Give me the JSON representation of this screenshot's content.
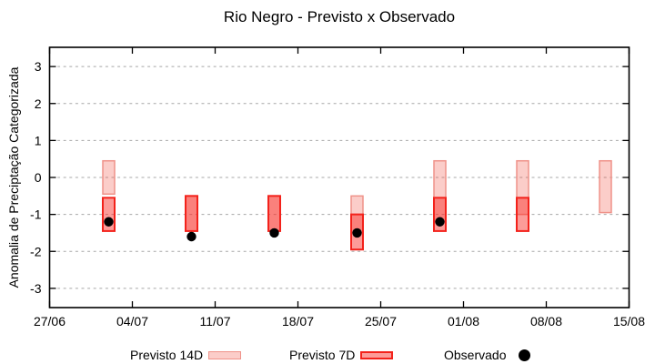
{
  "title": "Rio Negro - Previsto x Observado",
  "legend": {
    "previsto14_label": "Previsto 14D",
    "previsto7_label": "Previsto 7D",
    "observado_label": "Observado"
  },
  "colors": {
    "p14_fill": "rgba(240,70,55,0.27)",
    "p14_stroke": "#ef9289",
    "p7_fill": "rgba(248,40,32,0.46)",
    "p7_stroke": "#f3221b",
    "observado": "#000000",
    "grid": "#a8a8a8",
    "axis": "#000000"
  },
  "chart_data": {
    "type": "range-bar",
    "title": "Rio Negro - Previsto x Observado",
    "xlabel": "",
    "ylabel": "Anomalia de Preciptação Categorizada",
    "ylim": [
      -3.52,
      3.52
    ],
    "y_ticks": [
      -3,
      -2,
      -1,
      0,
      1,
      2,
      3
    ],
    "grid": true,
    "legend_position": "bottom",
    "x_range_days": [
      0,
      49
    ],
    "x_ticks": [
      {
        "label": "27/06",
        "day": 0
      },
      {
        "label": "04/07",
        "day": 7
      },
      {
        "label": "11/07",
        "day": 14
      },
      {
        "label": "18/07",
        "day": 21
      },
      {
        "label": "25/07",
        "day": 28
      },
      {
        "label": "01/08",
        "day": 35
      },
      {
        "label": "08/08",
        "day": 42
      },
      {
        "label": "15/08",
        "day": 49
      }
    ],
    "series": [
      {
        "name": "Previsto 14D",
        "kind": "range"
      },
      {
        "name": "Previsto 7D",
        "kind": "range"
      },
      {
        "name": "Observado",
        "kind": "point"
      }
    ],
    "groups": [
      {
        "date": "02/07",
        "day": 5,
        "previsto14": [
          0.45,
          -0.45
        ],
        "previsto7": [
          -0.55,
          -1.45
        ],
        "observado": -1.2
      },
      {
        "date": "09/07",
        "day": 12,
        "previsto14": [
          -0.5,
          -1.45
        ],
        "previsto7": [
          -0.5,
          -1.45
        ],
        "observado": -1.6
      },
      {
        "date": "16/07",
        "day": 19,
        "previsto14": [
          -0.5,
          -1.45
        ],
        "previsto7": [
          -0.5,
          -1.45
        ],
        "observado": -1.5
      },
      {
        "date": "23/07",
        "day": 26,
        "previsto14": [
          -0.5,
          -1.5
        ],
        "previsto7": [
          -1.0,
          -1.95
        ],
        "observado": -1.5
      },
      {
        "date": "30/07",
        "day": 33,
        "previsto14": [
          0.45,
          -1.2
        ],
        "previsto7": [
          -0.55,
          -1.45
        ],
        "observado": -1.2
      },
      {
        "date": "06/08",
        "day": 40,
        "previsto14": [
          0.45,
          -1.0
        ],
        "previsto7": [
          -0.55,
          -1.45
        ],
        "observado": null
      },
      {
        "date": "13/08",
        "day": 47,
        "previsto14": [
          0.45,
          -0.95
        ],
        "previsto7": null,
        "observado": null
      }
    ]
  }
}
